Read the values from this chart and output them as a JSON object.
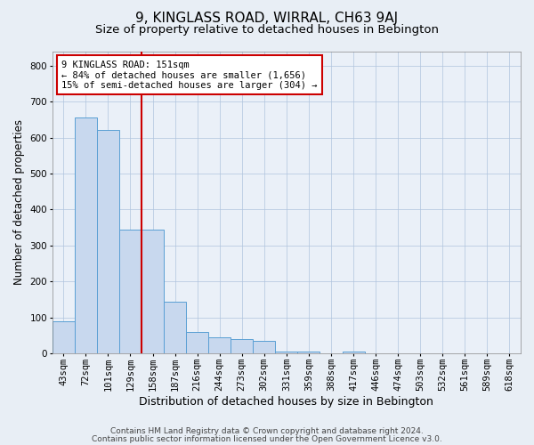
{
  "title": "9, KINGLASS ROAD, WIRRAL, CH63 9AJ",
  "subtitle": "Size of property relative to detached houses in Bebington",
  "xlabel": "Distribution of detached houses by size in Bebington",
  "ylabel": "Number of detached properties",
  "categories": [
    "43sqm",
    "72sqm",
    "101sqm",
    "129sqm",
    "158sqm",
    "187sqm",
    "216sqm",
    "244sqm",
    "273sqm",
    "302sqm",
    "331sqm",
    "359sqm",
    "388sqm",
    "417sqm",
    "446sqm",
    "474sqm",
    "503sqm",
    "532sqm",
    "561sqm",
    "589sqm",
    "618sqm"
  ],
  "values": [
    90,
    655,
    620,
    345,
    345,
    145,
    60,
    45,
    40,
    35,
    5,
    5,
    0,
    5,
    0,
    0,
    0,
    0,
    0,
    0,
    0
  ],
  "bar_color": "#c8d8ee",
  "bar_edge_color": "#5a9fd4",
  "highlight_line_color": "#cc0000",
  "highlight_line_index": 4,
  "annotation_text": "9 KINGLASS ROAD: 151sqm\n← 84% of detached houses are smaller (1,656)\n15% of semi-detached houses are larger (304) →",
  "annotation_box_color": "#ffffff",
  "annotation_box_edge_color": "#cc0000",
  "ylim": [
    0,
    840
  ],
  "yticks": [
    0,
    100,
    200,
    300,
    400,
    500,
    600,
    700,
    800
  ],
  "footer1": "Contains HM Land Registry data © Crown copyright and database right 2024.",
  "footer2": "Contains public sector information licensed under the Open Government Licence v3.0.",
  "background_color": "#e8eef5",
  "plot_bg_color": "#eaf0f8",
  "title_fontsize": 11,
  "subtitle_fontsize": 9.5,
  "tick_fontsize": 7.5,
  "ylabel_fontsize": 8.5,
  "xlabel_fontsize": 9,
  "footer_fontsize": 6.5
}
